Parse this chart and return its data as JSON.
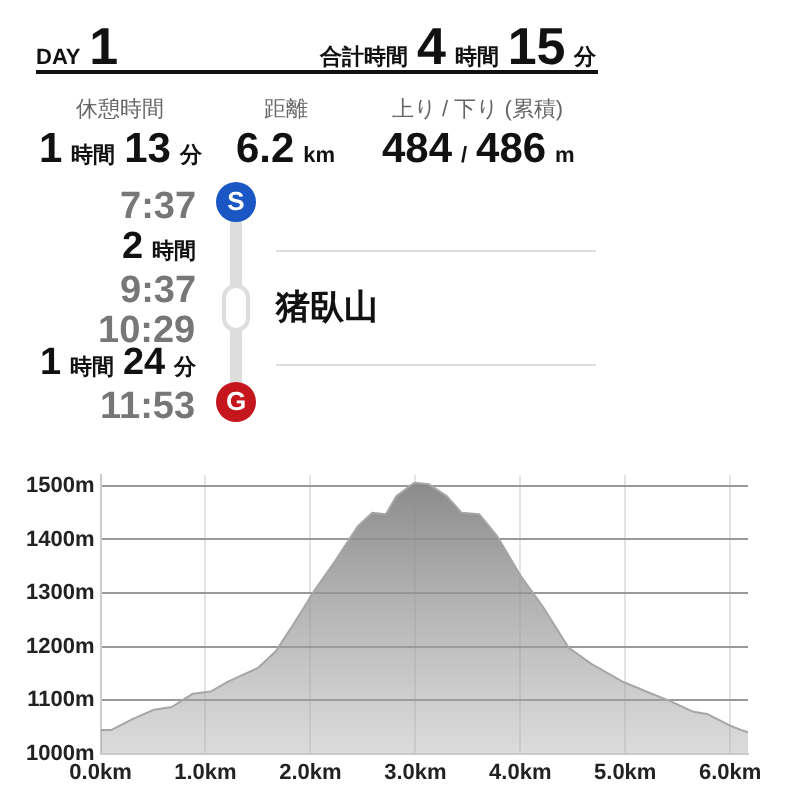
{
  "chart_data": [
    {
      "type": "other",
      "annotations": [
        "DAY 1",
        "合計時間 4 時間 15 分",
        "休憩時間",
        "1 時間 13 分",
        "距離",
        "6.2 km",
        "上り / 下り (累積)",
        "484 / 486 m",
        "7:37",
        "S",
        "2 時間",
        "9:37",
        "10:29",
        "猪臥山",
        "1 時間 24 分",
        "11:53",
        "G"
      ]
    },
    {
      "type": "area",
      "color": "#a6a6a6",
      "grid": true,
      "x": [
        0,
        0.1,
        0.31,
        0.51,
        0.68,
        0.88,
        1.05,
        1.22,
        1.5,
        1.67,
        1.84,
        2.04,
        2.24,
        2.45,
        2.59,
        2.72,
        2.82,
        2.99,
        3.13,
        3.3,
        3.44,
        3.61,
        3.78,
        4.01,
        4.22,
        4.46,
        4.69,
        4.97,
        5.2,
        5.44,
        5.65,
        5.78,
        5.99,
        6.12,
        6.17
      ],
      "values": [
        1044,
        1044,
        1065,
        1082,
        1087,
        1112,
        1116,
        1135,
        1160,
        1191,
        1242,
        1305,
        1361,
        1424,
        1450,
        1447,
        1481,
        1506,
        1503,
        1481,
        1450,
        1447,
        1406,
        1330,
        1273,
        1198,
        1166,
        1135,
        1116,
        1097,
        1078,
        1074,
        1053,
        1043,
        1040
      ],
      "xlim": [
        0,
        6.17
      ],
      "ylim": [
        1000,
        1520
      ],
      "xticks": [
        {
          "value": 0,
          "label": "0.0km"
        },
        {
          "value": 1,
          "label": "1.0km"
        },
        {
          "value": 2,
          "label": "2.0km"
        },
        {
          "value": 3,
          "label": "3.0km"
        },
        {
          "value": 4,
          "label": "4.0km"
        },
        {
          "value": 5,
          "label": "5.0km"
        },
        {
          "value": 6,
          "label": "6.0km"
        }
      ],
      "yticks": [
        {
          "value": 1000,
          "label": "1000m"
        },
        {
          "value": 1100,
          "label": "1100m"
        },
        {
          "value": 1200,
          "label": "1200m"
        },
        {
          "value": 1300,
          "label": "1300m"
        },
        {
          "value": 1400,
          "label": "1400m"
        },
        {
          "value": 1500,
          "label": "1500m"
        }
      ]
    }
  ]
}
